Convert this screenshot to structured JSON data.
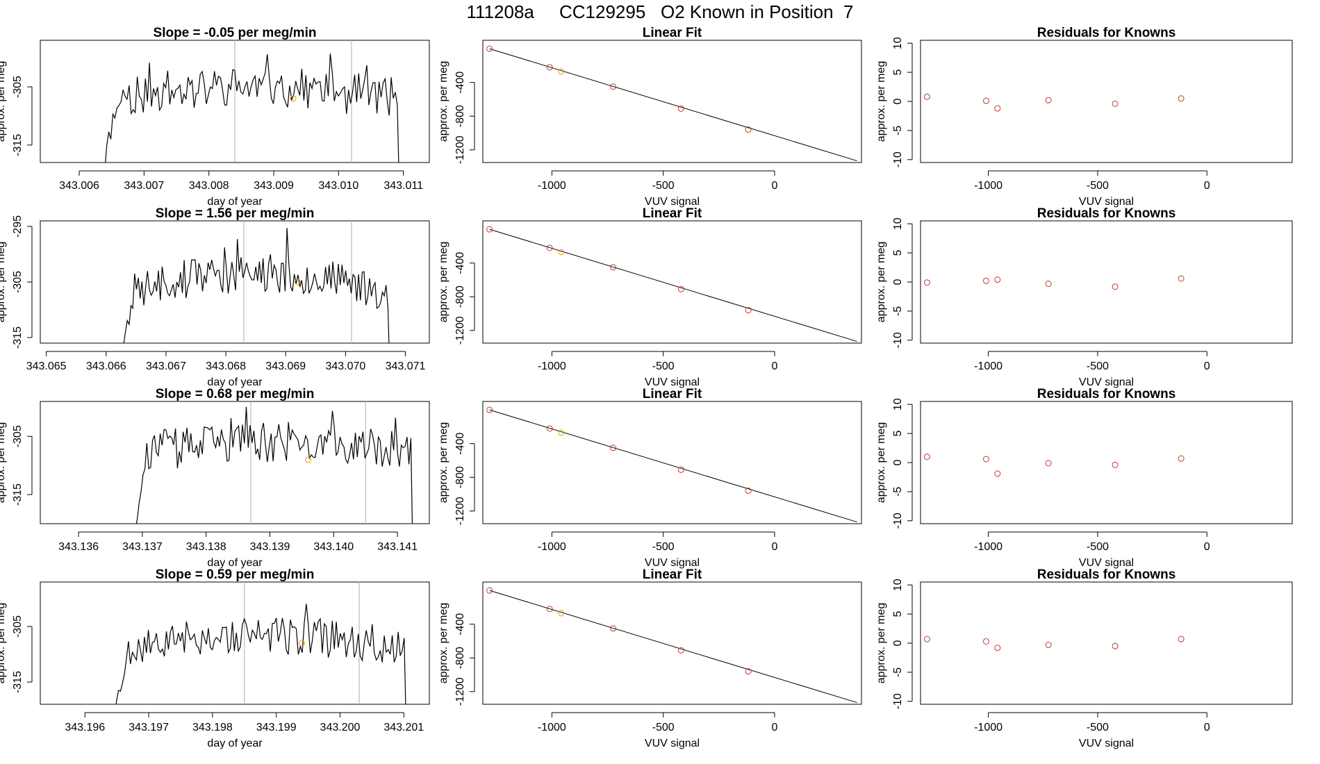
{
  "figure_title": "111208a     CC129295   O2 Known in Position  7",
  "colors": {
    "trace": "#000000",
    "fit_line": "#000000",
    "known_marker": "#c0392b",
    "highlight_marker": "#e69f00",
    "vline": "#bbbbbb",
    "axis": "#000000"
  },
  "chart_data": [
    {
      "type": "line",
      "panel": "timeseries",
      "title": "Slope =  -0.05  per meg/min",
      "xlabel": "day of year",
      "ylabel": "approx. per meg",
      "xlim": [
        343.0054,
        343.0114
      ],
      "ylim": [
        -318,
        -297
      ],
      "xticks": [
        343.006,
        343.007,
        343.008,
        343.009,
        343.01,
        343.011
      ],
      "xtick_labels": [
        "343.006",
        "343.007",
        "343.008",
        "343.009",
        "343.010",
        "343.011"
      ],
      "yticks": [
        -315,
        -305
      ],
      "ytick_labels": [
        "-315",
        "-305"
      ],
      "vlines": [
        343.0084,
        343.0102
      ],
      "start": 343.0063,
      "end": 343.011,
      "plateau": -307,
      "peak": -302,
      "highlight": {
        "x": 343.0093,
        "y": -307
      },
      "seed": 11
    },
    {
      "type": "scatter",
      "panel": "linear_fit",
      "title": "Linear Fit",
      "xlabel": "VUV signal",
      "ylabel": "approx. per meg",
      "xlim": [
        -1310,
        390
      ],
      "ylim": [
        -1350,
        100
      ],
      "xticks": [
        -1000,
        -500,
        0
      ],
      "xtick_labels": [
        "-1000",
        "-500",
        "0"
      ],
      "yticks": [
        -1200,
        -800,
        -400
      ],
      "ytick_labels": [
        "-1200",
        "-800",
        "-400"
      ],
      "x": [
        -1280,
        -1010,
        -958,
        -725,
        -420,
        -118
      ],
      "y": [
        0,
        -220,
        -270,
        -450,
        -710,
        -960
      ],
      "highlight_index": 2,
      "fit": {
        "x": [
          -1280,
          370
        ],
        "y": [
          0,
          -1330
        ]
      }
    },
    {
      "type": "scatter",
      "panel": "residuals",
      "title": "Residuals for Knowns",
      "xlabel": "VUV signal",
      "ylabel": "approx. per meg",
      "xlim": [
        -1310,
        390
      ],
      "ylim": [
        -10.5,
        10.5
      ],
      "xticks": [
        -1000,
        -500,
        0
      ],
      "xtick_labels": [
        "-1000",
        "-500",
        "0"
      ],
      "yticks": [
        -10,
        -5,
        0,
        5,
        10
      ],
      "ytick_labels": [
        "-10",
        "-5",
        "0",
        "5",
        "10"
      ],
      "x": [
        -1280,
        -1010,
        -958,
        -725,
        -420,
        -118
      ],
      "y": [
        0.8,
        0.1,
        -1.2,
        0.2,
        -0.4,
        0.5
      ]
    },
    {
      "type": "line",
      "panel": "timeseries",
      "title": "Slope =  1.56  per meg/min",
      "xlabel": "day of year",
      "ylabel": "approx. per meg",
      "xlim": [
        343.0649,
        343.0714
      ],
      "ylim": [
        -316,
        -294
      ],
      "xticks": [
        343.065,
        343.066,
        343.067,
        343.068,
        343.069,
        343.07,
        343.071
      ],
      "xtick_labels": [
        "343.065",
        "343.066",
        "343.067",
        "343.068",
        "343.069",
        "343.070",
        "343.071"
      ],
      "yticks": [
        -315,
        -305,
        -295
      ],
      "ytick_labels": [
        "-315",
        "-305",
        "-295"
      ],
      "vlines": [
        343.0683,
        343.0701
      ],
      "start": 343.0662,
      "end": 343.0708,
      "plateau": -307,
      "peak": -298,
      "highlight": {
        "x": 343.0692,
        "y": -305
      },
      "seed": 23
    },
    {
      "type": "scatter",
      "panel": "linear_fit",
      "title": "Linear Fit",
      "xlabel": "VUV signal",
      "ylabel": "approx. per meg",
      "xlim": [
        -1310,
        390
      ],
      "ylim": [
        -1350,
        100
      ],
      "xticks": [
        -1000,
        -500,
        0
      ],
      "xtick_labels": [
        "-1000",
        "-500",
        "0"
      ],
      "yticks": [
        -1200,
        -800,
        -400
      ],
      "ytick_labels": [
        "-1200",
        "-800",
        "-400"
      ],
      "x": [
        -1280,
        -1010,
        -958,
        -725,
        -420,
        -118
      ],
      "y": [
        0,
        -220,
        -270,
        -450,
        -710,
        -960
      ],
      "highlight_index": 2,
      "fit": {
        "x": [
          -1280,
          370
        ],
        "y": [
          0,
          -1330
        ]
      }
    },
    {
      "type": "scatter",
      "panel": "residuals",
      "title": "Residuals for Knowns",
      "xlabel": "VUV signal",
      "ylabel": "approx. per meg",
      "xlim": [
        -1310,
        390
      ],
      "ylim": [
        -10.5,
        10.5
      ],
      "xticks": [
        -1000,
        -500,
        0
      ],
      "xtick_labels": [
        "-1000",
        "-500",
        "0"
      ],
      "yticks": [
        -10,
        -5,
        0,
        5,
        10
      ],
      "ytick_labels": [
        "-10",
        "-5",
        "0",
        "5",
        "10"
      ],
      "x": [
        -1280,
        -1010,
        -958,
        -725,
        -420,
        -118
      ],
      "y": [
        -0.1,
        0.2,
        0.4,
        -0.3,
        -0.8,
        0.6
      ]
    },
    {
      "type": "line",
      "panel": "timeseries",
      "title": "Slope =  0.68  per meg/min",
      "xlabel": "day of year",
      "ylabel": "approx. per meg",
      "xlim": [
        343.1354,
        343.1415
      ],
      "ylim": [
        -320,
        -299
      ],
      "xticks": [
        343.136,
        343.137,
        343.138,
        343.139,
        343.14,
        343.141
      ],
      "xtick_labels": [
        "343.136",
        "343.137",
        "343.138",
        "343.139",
        "343.140",
        "343.141"
      ],
      "yticks": [
        -315,
        -305
      ],
      "ytick_labels": [
        "-315",
        "-305"
      ],
      "vlines": [
        343.1387,
        343.1405
      ],
      "start": 343.1368,
      "end": 343.1413,
      "plateau": -308,
      "peak": -303,
      "highlight": {
        "x": 343.1396,
        "y": -309
      },
      "seed": 37
    },
    {
      "type": "scatter",
      "panel": "linear_fit",
      "title": "Linear Fit",
      "xlabel": "VUV signal",
      "ylabel": "approx. per meg",
      "xlim": [
        -1310,
        390
      ],
      "ylim": [
        -1350,
        100
      ],
      "xticks": [
        -1000,
        -500,
        0
      ],
      "xtick_labels": [
        "-1000",
        "-500",
        "0"
      ],
      "yticks": [
        -1200,
        -800,
        -400
      ],
      "ytick_labels": [
        "-1200",
        "-800",
        "-400"
      ],
      "x": [
        -1280,
        -1010,
        -958,
        -725,
        -420,
        -118
      ],
      "y": [
        0,
        -220,
        -270,
        -450,
        -710,
        -960
      ],
      "highlight_index": 2,
      "fit": {
        "x": [
          -1280,
          370
        ],
        "y": [
          0,
          -1330
        ]
      }
    },
    {
      "type": "scatter",
      "panel": "residuals",
      "title": "Residuals for Knowns",
      "xlabel": "VUV signal",
      "ylabel": "approx. per meg",
      "xlim": [
        -1310,
        390
      ],
      "ylim": [
        -10.5,
        10.5
      ],
      "xticks": [
        -1000,
        -500,
        0
      ],
      "xtick_labels": [
        "-1000",
        "-500",
        "0"
      ],
      "yticks": [
        -10,
        -5,
        0,
        5,
        10
      ],
      "ytick_labels": [
        "-10",
        "-5",
        "0",
        "5",
        "10"
      ],
      "x": [
        -1280,
        -1010,
        -958,
        -725,
        -420,
        -118
      ],
      "y": [
        1.0,
        0.6,
        -1.9,
        -0.1,
        -0.4,
        0.7
      ]
    },
    {
      "type": "line",
      "panel": "timeseries",
      "title": "Slope =  0.59  per meg/min",
      "xlabel": "day of year",
      "ylabel": "approx. per meg",
      "xlim": [
        343.1953,
        343.2014
      ],
      "ylim": [
        -319,
        -297
      ],
      "xticks": [
        343.196,
        343.197,
        343.198,
        343.199,
        343.2,
        343.201
      ],
      "xtick_labels": [
        "343.196",
        "343.197",
        "343.198",
        "343.199",
        "343.200",
        "343.201"
      ],
      "yticks": [
        -315,
        -305
      ],
      "ytick_labels": [
        "-315",
        "-305"
      ],
      "vlines": [
        343.1985,
        343.2003
      ],
      "start": 343.1964,
      "end": 343.2011,
      "plateau": -309,
      "peak": -303,
      "highlight": {
        "x": 343.1994,
        "y": -308
      },
      "seed": 53
    },
    {
      "type": "scatter",
      "panel": "linear_fit",
      "title": "Linear Fit",
      "xlabel": "VUV signal",
      "ylabel": "approx. per meg",
      "xlim": [
        -1310,
        390
      ],
      "ylim": [
        -1350,
        100
      ],
      "xticks": [
        -1000,
        -500,
        0
      ],
      "xtick_labels": [
        "-1000",
        "-500",
        "0"
      ],
      "yticks": [
        -1200,
        -800,
        -400
      ],
      "ytick_labels": [
        "-1200",
        "-800",
        "-400"
      ],
      "x": [
        -1280,
        -1010,
        -958,
        -725,
        -420,
        -118
      ],
      "y": [
        0,
        -220,
        -270,
        -450,
        -710,
        -960
      ],
      "highlight_index": 2,
      "fit": {
        "x": [
          -1280,
          370
        ],
        "y": [
          0,
          -1330
        ]
      }
    },
    {
      "type": "scatter",
      "panel": "residuals",
      "title": "Residuals for Knowns",
      "xlabel": "VUV signal",
      "ylabel": "approx. per meg",
      "xlim": [
        -1310,
        390
      ],
      "ylim": [
        -10.5,
        10.5
      ],
      "xticks": [
        -1000,
        -500,
        0
      ],
      "xtick_labels": [
        "-1000",
        "-500",
        "0"
      ],
      "yticks": [
        -10,
        -5,
        0,
        5,
        10
      ],
      "ytick_labels": [
        "-10",
        "-5",
        "0",
        "5",
        "10"
      ],
      "x": [
        -1280,
        -1010,
        -958,
        -725,
        -420,
        -118
      ],
      "y": [
        0.7,
        0.3,
        -0.8,
        -0.3,
        -0.5,
        0.7
      ]
    }
  ]
}
